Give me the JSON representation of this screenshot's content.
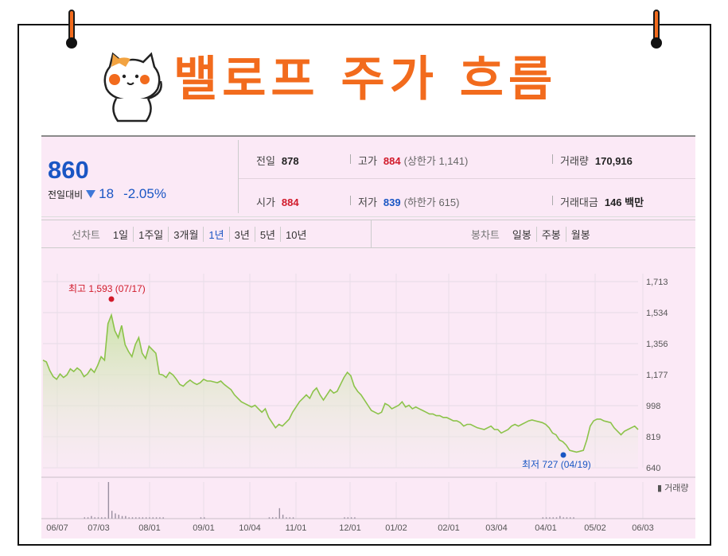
{
  "title": "밸로프 주가 흐름",
  "quote": {
    "price": "860",
    "change_label": "전일대비",
    "change_value": "18",
    "change_pct": "-2.05%",
    "prev_label": "전일",
    "prev_value": "878",
    "high_label": "고가",
    "high_value": "884",
    "high_sub": "(상한가 1,141)",
    "volume_label": "거래량",
    "volume_value": "170,916",
    "open_label": "시가",
    "open_value": "884",
    "low_label": "저가",
    "low_value": "839",
    "low_sub": "(하한가 615)",
    "amount_label": "거래대금",
    "amount_value": "146 백만"
  },
  "tabs": {
    "line_label": "선차트",
    "line_items": [
      "1일",
      "1주일",
      "3개월",
      "1년",
      "3년",
      "5년",
      "10년"
    ],
    "active": "1년",
    "candle_label": "봉차트",
    "candle_items": [
      "일봉",
      "주봉",
      "월봉"
    ]
  },
  "colors": {
    "accent": "#f26b1d",
    "up": "#d11a2a",
    "down": "#1a56c4",
    "line": "#8cc34a",
    "panel": "#fbe9f6"
  },
  "icons": {
    "mascot": "cat-mascot-icon",
    "down": "triangle-down-icon"
  },
  "chart_data": {
    "type": "area",
    "y_ticks": [
      "1,713",
      "1,534",
      "1,356",
      "1,177",
      "998",
      "819",
      "640"
    ],
    "ylim": [
      640,
      1713
    ],
    "x_ticks": [
      "06/07",
      "07/03",
      "08/01",
      "09/01",
      "10/04",
      "11/01",
      "12/01",
      "01/02",
      "02/01",
      "03/04",
      "04/01",
      "05/02",
      "06/03"
    ],
    "high_label": "최고 1,593 (07/17)",
    "low_label": "최저 727 (04/19)",
    "volume_label": "거래량",
    "series": [
      {
        "values": [
          1260,
          1250,
          1200,
          1165,
          1150,
          1180,
          1160,
          1175,
          1210,
          1195,
          1215,
          1200,
          1165,
          1180,
          1210,
          1190,
          1230,
          1280,
          1260,
          1470,
          1520,
          1430,
          1390,
          1460,
          1350,
          1310,
          1280,
          1350,
          1390,
          1300,
          1270,
          1340,
          1320,
          1300,
          1180,
          1175,
          1160,
          1190,
          1175,
          1150,
          1120,
          1110,
          1130,
          1145,
          1130,
          1120,
          1130,
          1150,
          1140,
          1140,
          1135,
          1130,
          1140,
          1120,
          1105,
          1090,
          1060,
          1040,
          1020,
          1010,
          1000,
          990,
          1000,
          980,
          960,
          980,
          930,
          900,
          870,
          890,
          880,
          900,
          920,
          960,
          990,
          1020,
          1040,
          1060,
          1040,
          1080,
          1100,
          1060,
          1030,
          1060,
          1090,
          1070,
          1080,
          1120,
          1160,
          1190,
          1170,
          1110,
          1080,
          1060,
          1030,
          1000,
          970,
          960,
          950,
          960,
          1010,
          1000,
          980,
          990,
          1000,
          1020,
          990,
          1000,
          980,
          990,
          980,
          970,
          960,
          950,
          950,
          940,
          940,
          930,
          930,
          920,
          910,
          910,
          900,
          880,
          890,
          890,
          880,
          870,
          865,
          860,
          870,
          880,
          860,
          860,
          840,
          850,
          860,
          880,
          890,
          880,
          890,
          900,
          910,
          915,
          910,
          905,
          900,
          890,
          870,
          840,
          830,
          800,
          790,
          770,
          740,
          735,
          730,
          735,
          740,
          800,
          880,
          910,
          920,
          920,
          910,
          905,
          900,
          870,
          850,
          830,
          850,
          860,
          870,
          880,
          860
        ]
      }
    ],
    "volume": [
      0,
      0,
      0,
      0,
      0,
      0,
      0,
      0,
      0,
      0,
      0,
      0,
      1,
      1,
      2,
      1,
      1,
      1,
      1,
      28,
      6,
      4,
      3,
      2,
      2,
      1,
      1,
      1,
      1,
      1,
      1,
      1,
      1,
      1,
      1,
      1,
      0,
      0,
      0,
      0,
      0,
      0,
      0,
      0,
      0,
      0,
      1,
      1,
      0,
      0,
      0,
      0,
      0,
      0,
      0,
      0,
      0,
      0,
      0,
      0,
      0,
      0,
      0,
      0,
      0,
      0,
      1,
      1,
      1,
      8,
      3,
      1,
      1,
      1,
      0,
      0,
      0,
      0,
      0,
      0,
      0,
      0,
      0,
      0,
      0,
      0,
      0,
      0,
      1,
      1,
      1,
      1,
      0,
      0,
      0,
      0,
      0,
      0,
      0,
      0,
      0,
      0,
      0,
      0,
      0,
      0,
      0,
      0,
      0,
      0,
      0,
      0,
      0,
      0,
      0,
      0,
      0,
      0,
      0,
      0,
      0,
      0,
      0,
      0,
      0,
      0,
      0,
      0,
      0,
      0,
      0,
      0,
      0,
      0,
      0,
      0,
      0,
      0,
      0,
      0,
      0,
      0,
      0,
      0,
      0,
      0,
      1,
      1,
      1,
      1,
      1,
      2,
      1,
      1,
      1,
      1,
      0,
      0,
      0,
      0,
      0,
      0,
      0,
      0,
      0,
      0,
      0,
      0,
      0,
      0,
      0,
      0,
      0,
      0,
      0,
      0
    ]
  }
}
